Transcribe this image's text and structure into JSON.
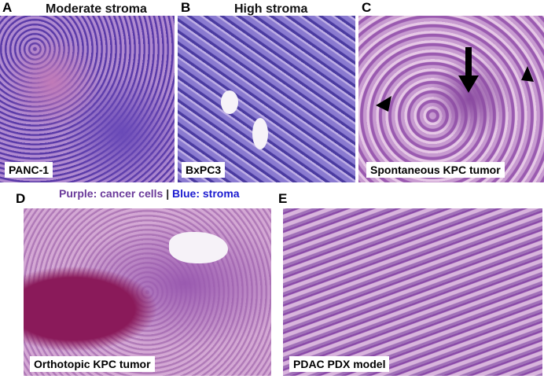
{
  "panels": [
    {
      "letter": "A",
      "title": "Moderate stroma",
      "caption": "PANC-1"
    },
    {
      "letter": "B",
      "title": "High stroma",
      "caption": "BxPC3"
    },
    {
      "letter": "C",
      "title": "",
      "caption": "Spontaneous KPC tumor"
    },
    {
      "letter": "D",
      "title": "",
      "caption": "Orthotopic KPC tumor"
    },
    {
      "letter": "E",
      "title": "",
      "caption": "PDAC PDX model"
    }
  ],
  "legend": {
    "purple": "Purple: cancer cells",
    "separator": "|",
    "blue": "Blue: stroma"
  },
  "colors": {
    "purple": "#6a3a9a",
    "blue": "#1a1ad0"
  }
}
